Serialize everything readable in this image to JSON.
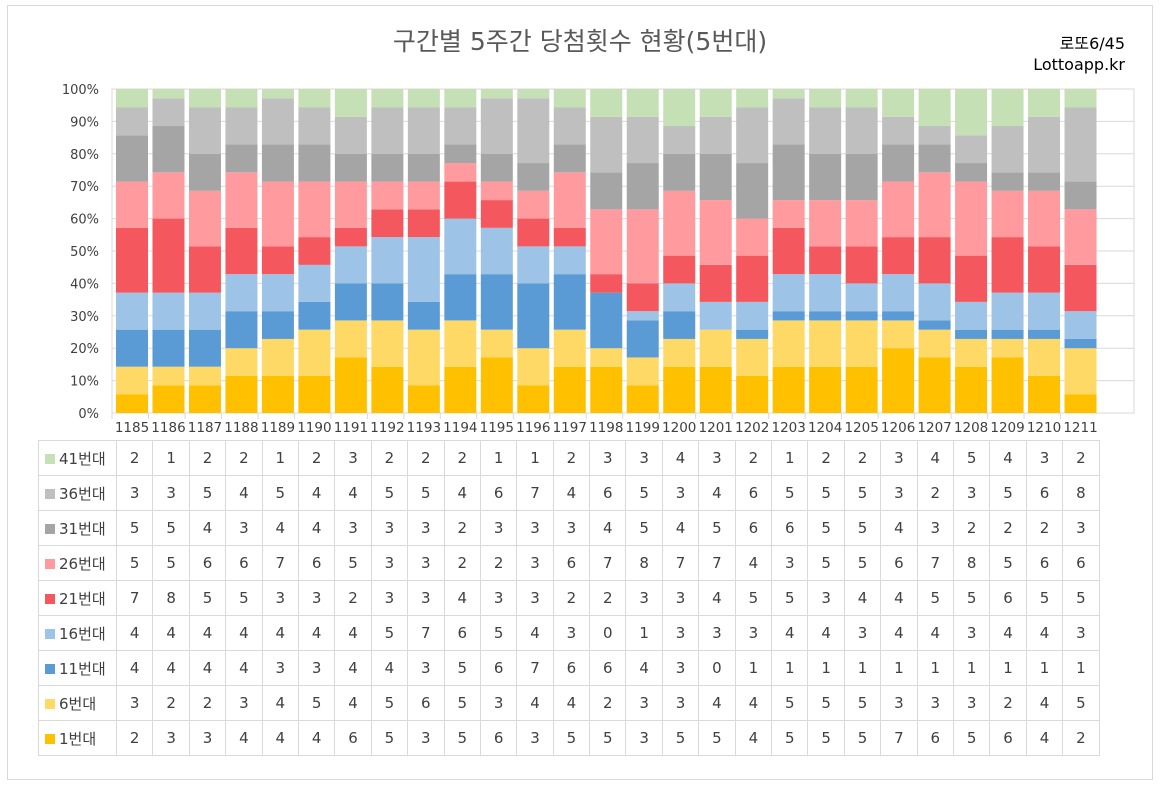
{
  "title": "구간별 5주간 당첨횟수 현황(5번대)",
  "brand": {
    "line1": "로또6/45",
    "line2": "Lottoapp.kr"
  },
  "chart_data": {
    "type": "bar",
    "stacked": "percent",
    "title": "구간별 5주간 당첨횟수 현황(5번대)",
    "categories": [
      "1185",
      "1186",
      "1187",
      "1188",
      "1189",
      "1190",
      "1191",
      "1192",
      "1193",
      "1194",
      "1195",
      "1196",
      "1197",
      "1198",
      "1199",
      "1200",
      "1201",
      "1202",
      "1203",
      "1204",
      "1205",
      "1206",
      "1207",
      "1208",
      "1209",
      "1210",
      "1211"
    ],
    "y_ticks": [
      "0%",
      "10%",
      "20%",
      "30%",
      "40%",
      "50%",
      "60%",
      "70%",
      "80%",
      "90%",
      "100%"
    ],
    "ylim": [
      0,
      100
    ],
    "grid": true,
    "series": [
      {
        "name": "1번대",
        "color": "#ffc000",
        "values": [
          2,
          3,
          3,
          4,
          4,
          4,
          6,
          5,
          3,
          5,
          6,
          3,
          5,
          5,
          3,
          5,
          5,
          4,
          5,
          5,
          5,
          7,
          6,
          5,
          6,
          4,
          2
        ]
      },
      {
        "name": "6번대",
        "color": "#ffd966",
        "values": [
          3,
          2,
          2,
          3,
          4,
          5,
          4,
          5,
          6,
          5,
          3,
          4,
          4,
          2,
          3,
          3,
          4,
          4,
          5,
          5,
          5,
          3,
          3,
          3,
          2,
          4,
          5
        ]
      },
      {
        "name": "11번대",
        "color": "#5b9bd5",
        "values": [
          4,
          4,
          4,
          4,
          3,
          3,
          4,
          4,
          3,
          5,
          6,
          7,
          6,
          6,
          4,
          3,
          0,
          1,
          1,
          1,
          1,
          1,
          1,
          1,
          1,
          1,
          1
        ]
      },
      {
        "name": "16번대",
        "color": "#9dc3e6",
        "values": [
          4,
          4,
          4,
          4,
          4,
          4,
          4,
          5,
          7,
          6,
          5,
          4,
          3,
          0,
          1,
          3,
          3,
          3,
          4,
          4,
          3,
          4,
          4,
          3,
          4,
          4,
          3
        ]
      },
      {
        "name": "21번대",
        "color": "#f4585e",
        "values": [
          7,
          8,
          5,
          5,
          3,
          3,
          2,
          3,
          3,
          4,
          3,
          3,
          2,
          2,
          3,
          3,
          4,
          5,
          5,
          3,
          4,
          4,
          5,
          5,
          6,
          5,
          5
        ]
      },
      {
        "name": "26번대",
        "color": "#ff9a9e",
        "values": [
          5,
          5,
          6,
          6,
          7,
          6,
          5,
          3,
          3,
          2,
          2,
          3,
          6,
          7,
          8,
          7,
          7,
          4,
          3,
          5,
          5,
          6,
          7,
          8,
          5,
          6,
          6
        ]
      },
      {
        "name": "31번대",
        "color": "#a5a5a5",
        "values": [
          5,
          5,
          4,
          3,
          4,
          4,
          3,
          3,
          3,
          2,
          3,
          3,
          3,
          4,
          5,
          4,
          5,
          6,
          6,
          5,
          5,
          4,
          3,
          2,
          2,
          2,
          3
        ]
      },
      {
        "name": "36번대",
        "color": "#bfbfbf",
        "values": [
          3,
          3,
          5,
          4,
          5,
          4,
          4,
          5,
          5,
          4,
          6,
          7,
          4,
          6,
          5,
          3,
          4,
          6,
          5,
          5,
          5,
          3,
          2,
          3,
          5,
          6,
          8
        ]
      },
      {
        "name": "41번대",
        "color": "#c5e0b4",
        "values": [
          2,
          1,
          2,
          2,
          1,
          2,
          3,
          2,
          2,
          2,
          1,
          1,
          2,
          3,
          3,
          4,
          3,
          2,
          1,
          2,
          2,
          3,
          4,
          5,
          4,
          3,
          2
        ]
      }
    ]
  }
}
